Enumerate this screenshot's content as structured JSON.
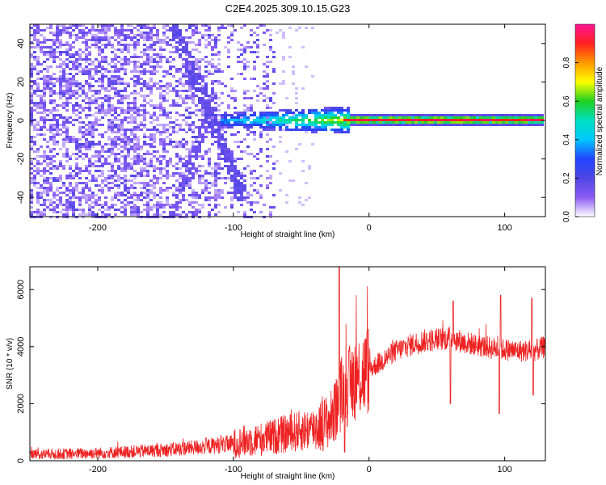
{
  "figure": {
    "title": "C2E4.2025.309.10.15.G23"
  },
  "chart_data": [
    {
      "type": "heatmap",
      "xlabel": "Height of straight line (km)",
      "ylabel": "Frequency (Hz)",
      "xlim": [
        -250,
        130
      ],
      "ylim": [
        -50,
        50
      ],
      "xticks": [
        -200,
        -100,
        0,
        100
      ],
      "yticks": [
        -40,
        -20,
        0,
        20,
        40
      ],
      "colorbar": {
        "label": "Normalized spectral amplitude",
        "range": [
          0,
          1
        ],
        "ticks": [
          "0.0",
          "0.2",
          "0.4",
          "0.6",
          "0.8"
        ],
        "tick_values": [
          0,
          0.2,
          0.4,
          0.6,
          0.8
        ],
        "colormap": [
          "#ffffff",
          "#8b5cf6",
          "#4f46e5",
          "#2244ff",
          "#00c8ff",
          "#00e0c0",
          "#20d020",
          "#ffff00",
          "#ff9900",
          "#ff2020",
          "#ff1493"
        ]
      },
      "features": {
        "carrier_line": {
          "frequency_hz": 0,
          "x_start": 0,
          "x_end": 130,
          "amplitude": 0.95
        },
        "carrier_broadening": {
          "x_start": -110,
          "x_end": -15,
          "freq_halfwidth_hz": 6,
          "amplitude": 0.45
        },
        "diagonal_streak": {
          "from": [
            -145,
            50
          ],
          "to": [
            -95,
            -35
          ],
          "amplitude": 0.15
        },
        "diagonal_streak_2": {
          "from": [
            -115,
            10
          ],
          "to": [
            -145,
            -50
          ],
          "amplitude": 0.12
        },
        "noise_region": {
          "x_start": -250,
          "x_end": -70
        }
      }
    },
    {
      "type": "line",
      "xlabel": "Height of straight line (km)",
      "ylabel": "SNR (10 * v/v)",
      "xlim": [
        -250,
        130
      ],
      "ylim": [
        0,
        6800
      ],
      "xticks": [
        -200,
        -100,
        0,
        100
      ],
      "yticks": [
        0,
        2000,
        4000,
        6000
      ],
      "series": [
        {
          "color": "#ee2222",
          "x": [
            -250,
            -225,
            -200,
            -175,
            -150,
            -125,
            -100,
            -90,
            -80,
            -70,
            -60,
            -50,
            -40,
            -35,
            -30,
            -27,
            -25,
            -23,
            -21,
            -20,
            -18,
            -15,
            -12,
            -10,
            -5,
            0,
            5,
            10,
            15,
            20,
            25,
            30,
            40,
            50,
            60,
            70,
            80,
            90,
            100,
            110,
            120,
            125,
            130
          ],
          "y": [
            220,
            240,
            270,
            320,
            380,
            480,
            600,
            700,
            750,
            850,
            950,
            1050,
            1150,
            1250,
            1400,
            1550,
            1700,
            2000,
            2300,
            2400,
            2500,
            2600,
            2800,
            2900,
            3050,
            3200,
            3350,
            3500,
            3700,
            3850,
            3950,
            4050,
            4200,
            4250,
            4300,
            4150,
            4050,
            3950,
            3900,
            3850,
            3850,
            3900,
            4000
          ]
        }
      ],
      "spikes": [
        {
          "x": -22,
          "y": 6800
        },
        {
          "x": -25,
          "y": 2700
        },
        {
          "x": -18,
          "y": 300
        },
        {
          "x": 60,
          "y": 2000
        },
        {
          "x": 62,
          "y": 5600
        },
        {
          "x": 97,
          "y": 5800
        },
        {
          "x": 96,
          "y": 1650
        },
        {
          "x": 120,
          "y": 5700
        },
        {
          "x": 121,
          "y": 2300
        }
      ]
    }
  ]
}
